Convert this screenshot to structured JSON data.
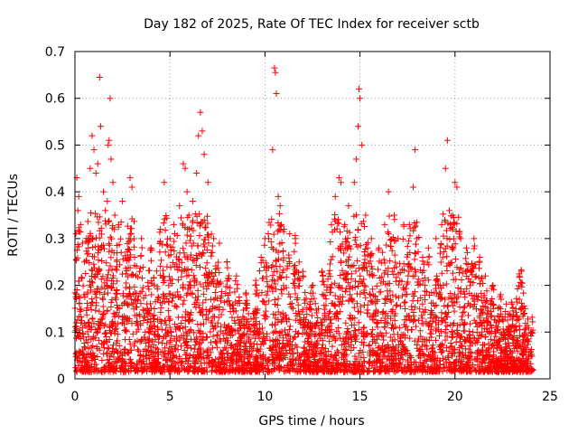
{
  "chart_data": {
    "type": "scatter",
    "title": "Day 182 of 2025, Rate Of TEC Index for receiver sctb",
    "xlabel": "GPS time / hours",
    "ylabel": "ROTI / TECUs",
    "xlim": [
      0,
      25
    ],
    "ylim": [
      0,
      0.7
    ],
    "xticks": [
      0,
      5,
      10,
      15,
      20,
      25
    ],
    "yticks": [
      0,
      0.1,
      0.2,
      0.3,
      0.4,
      0.5,
      0.6,
      0.7
    ],
    "xtick_labels": [
      "0",
      "5",
      "10",
      "15",
      "20",
      "25"
    ],
    "ytick_labels": [
      "0",
      "0.1",
      "0.2",
      "0.3",
      "0.4",
      "0.5",
      "0.6",
      "0.7"
    ],
    "grid": true,
    "marker": "+",
    "color": "#ff0000",
    "series": [
      {
        "name": "ROTI",
        "points": [
          [
            0.05,
            0.31
          ],
          [
            0.1,
            0.43
          ],
          [
            0.15,
            0.36
          ],
          [
            0.2,
            0.39
          ],
          [
            0.3,
            0.33
          ],
          [
            0.4,
            0.29
          ],
          [
            0.5,
            0.25
          ],
          [
            0.7,
            0.28
          ],
          [
            0.8,
            0.45
          ],
          [
            0.9,
            0.52
          ],
          [
            1.0,
            0.49
          ],
          [
            1.1,
            0.44
          ],
          [
            1.2,
            0.46
          ],
          [
            1.3,
            0.645
          ],
          [
            1.35,
            0.54
          ],
          [
            1.5,
            0.4
          ],
          [
            1.6,
            0.36
          ],
          [
            1.7,
            0.38
          ],
          [
            1.75,
            0.5
          ],
          [
            1.8,
            0.51
          ],
          [
            1.85,
            0.6
          ],
          [
            1.9,
            0.47
          ],
          [
            2.0,
            0.42
          ],
          [
            2.1,
            0.35
          ],
          [
            2.3,
            0.33
          ],
          [
            2.5,
            0.38
          ],
          [
            2.9,
            0.43
          ],
          [
            3.0,
            0.41
          ],
          [
            3.5,
            0.3
          ],
          [
            4.0,
            0.28
          ],
          [
            4.5,
            0.32
          ],
          [
            4.7,
            0.42
          ],
          [
            5.0,
            0.3
          ],
          [
            5.2,
            0.33
          ],
          [
            5.5,
            0.37
          ],
          [
            5.7,
            0.46
          ],
          [
            5.8,
            0.45
          ],
          [
            5.9,
            0.4
          ],
          [
            6.0,
            0.35
          ],
          [
            6.2,
            0.38
          ],
          [
            6.4,
            0.44
          ],
          [
            6.5,
            0.52
          ],
          [
            6.6,
            0.57
          ],
          [
            6.7,
            0.53
          ],
          [
            6.8,
            0.48
          ],
          [
            7.0,
            0.42
          ],
          [
            7.3,
            0.3
          ],
          [
            7.6,
            0.29
          ],
          [
            8.0,
            0.25
          ],
          [
            8.5,
            0.22
          ],
          [
            9.0,
            0.18
          ],
          [
            9.5,
            0.2
          ],
          [
            9.8,
            0.26
          ],
          [
            10.0,
            0.3
          ],
          [
            10.2,
            0.3
          ],
          [
            10.4,
            0.49
          ],
          [
            10.5,
            0.665
          ],
          [
            10.55,
            0.655
          ],
          [
            10.6,
            0.61
          ],
          [
            10.7,
            0.39
          ],
          [
            10.8,
            0.37
          ],
          [
            11.0,
            0.32
          ],
          [
            11.3,
            0.31
          ],
          [
            11.6,
            0.3
          ],
          [
            11.8,
            0.25
          ],
          [
            12.0,
            0.22
          ],
          [
            12.5,
            0.2
          ],
          [
            13.0,
            0.23
          ],
          [
            13.5,
            0.33
          ],
          [
            13.7,
            0.39
          ],
          [
            13.9,
            0.43
          ],
          [
            14.0,
            0.42
          ],
          [
            14.2,
            0.33
          ],
          [
            14.4,
            0.37
          ],
          [
            14.7,
            0.42
          ],
          [
            14.8,
            0.47
          ],
          [
            14.9,
            0.54
          ],
          [
            14.95,
            0.62
          ],
          [
            15.0,
            0.6
          ],
          [
            15.1,
            0.5
          ],
          [
            15.3,
            0.35
          ],
          [
            15.6,
            0.3
          ],
          [
            16.0,
            0.28
          ],
          [
            16.3,
            0.33
          ],
          [
            16.5,
            0.4
          ],
          [
            16.8,
            0.35
          ],
          [
            17.0,
            0.3
          ],
          [
            17.3,
            0.33
          ],
          [
            17.6,
            0.33
          ],
          [
            17.8,
            0.41
          ],
          [
            17.9,
            0.49
          ],
          [
            18.0,
            0.3
          ],
          [
            18.3,
            0.26
          ],
          [
            18.6,
            0.28
          ],
          [
            19.0,
            0.3
          ],
          [
            19.3,
            0.33
          ],
          [
            19.5,
            0.45
          ],
          [
            19.6,
            0.51
          ],
          [
            19.7,
            0.36
          ],
          [
            20.0,
            0.42
          ],
          [
            20.1,
            0.41
          ],
          [
            20.3,
            0.3
          ],
          [
            20.6,
            0.28
          ],
          [
            21.0,
            0.3
          ],
          [
            21.3,
            0.26
          ],
          [
            21.6,
            0.22
          ],
          [
            22.0,
            0.2
          ],
          [
            22.4,
            0.18
          ],
          [
            22.7,
            0.16
          ],
          [
            23.0,
            0.16
          ],
          [
            23.2,
            0.15
          ],
          [
            23.4,
            0.22
          ],
          [
            23.5,
            0.23
          ],
          [
            23.7,
            0.15
          ],
          [
            24.0,
            0.1
          ]
        ]
      }
    ]
  }
}
